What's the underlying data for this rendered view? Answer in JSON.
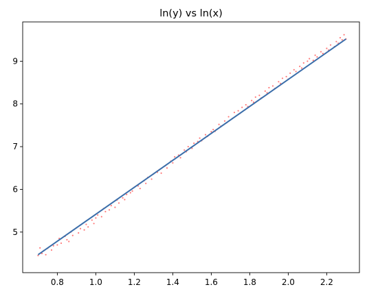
{
  "chart_data": {
    "type": "scatter",
    "title": "ln(y) vs ln(x)",
    "xlabel": "",
    "ylabel": "",
    "xlim": [
      0.62,
      2.37
    ],
    "ylim": [
      4.05,
      9.92
    ],
    "xticks": [
      0.8,
      1.0,
      1.2,
      1.4,
      1.6,
      1.8,
      2.0,
      2.2
    ],
    "xtick_labels": [
      "0.8",
      "1.0",
      "1.2",
      "1.4",
      "1.6",
      "1.8",
      "2.0",
      "2.2"
    ],
    "yticks": [
      5,
      6,
      7,
      8,
      9
    ],
    "ytick_labels": [
      "5",
      "6",
      "7",
      "8",
      "9"
    ],
    "grid": false,
    "series": [
      {
        "kind": "scatter",
        "color": "#ff4d4d",
        "points": [
          [
            0.7,
            4.45
          ],
          [
            0.71,
            4.63
          ],
          [
            0.72,
            4.5
          ],
          [
            0.73,
            4.57
          ],
          [
            0.74,
            4.47
          ],
          [
            0.75,
            4.62
          ],
          [
            0.77,
            4.58
          ],
          [
            0.78,
            4.68
          ],
          [
            0.8,
            4.7
          ],
          [
            0.81,
            4.85
          ],
          [
            0.82,
            4.74
          ],
          [
            0.84,
            4.9
          ],
          [
            0.85,
            4.82
          ],
          [
            0.86,
            4.78
          ],
          [
            0.87,
            5.0
          ],
          [
            0.88,
            4.92
          ],
          [
            0.9,
            5.1
          ],
          [
            0.91,
            4.98
          ],
          [
            0.92,
            5.08
          ],
          [
            0.94,
            5.05
          ],
          [
            0.95,
            5.18
          ],
          [
            0.96,
            5.12
          ],
          [
            0.98,
            5.28
          ],
          [
            0.99,
            5.2
          ],
          [
            1.0,
            5.33
          ],
          [
            1.01,
            5.4
          ],
          [
            1.03,
            5.36
          ],
          [
            1.04,
            5.55
          ],
          [
            1.05,
            5.48
          ],
          [
            1.07,
            5.52
          ],
          [
            1.08,
            5.62
          ],
          [
            1.1,
            5.58
          ],
          [
            1.11,
            5.75
          ],
          [
            1.12,
            5.68
          ],
          [
            1.14,
            5.8
          ],
          [
            1.15,
            5.76
          ],
          [
            1.16,
            5.88
          ],
          [
            1.18,
            5.92
          ],
          [
            1.19,
            5.96
          ],
          [
            1.2,
            6.05
          ],
          [
            1.22,
            6.08
          ],
          [
            1.23,
            6.02
          ],
          [
            1.25,
            6.2
          ],
          [
            1.26,
            6.14
          ],
          [
            1.27,
            6.28
          ],
          [
            1.29,
            6.24
          ],
          [
            1.3,
            6.36
          ],
          [
            1.32,
            6.4
          ],
          [
            1.33,
            6.46
          ],
          [
            1.34,
            6.38
          ],
          [
            1.36,
            6.55
          ],
          [
            1.37,
            6.5
          ],
          [
            1.39,
            6.66
          ],
          [
            1.4,
            6.62
          ],
          [
            1.41,
            6.76
          ],
          [
            1.43,
            6.8
          ],
          [
            1.44,
            6.74
          ],
          [
            1.46,
            6.92
          ],
          [
            1.47,
            6.88
          ],
          [
            1.48,
            7.0
          ],
          [
            1.5,
            6.96
          ],
          [
            1.51,
            7.08
          ],
          [
            1.53,
            7.12
          ],
          [
            1.54,
            7.2
          ],
          [
            1.55,
            7.14
          ],
          [
            1.57,
            7.28
          ],
          [
            1.58,
            7.24
          ],
          [
            1.6,
            7.35
          ],
          [
            1.61,
            7.4
          ],
          [
            1.62,
            7.36
          ],
          [
            1.64,
            7.52
          ],
          [
            1.65,
            7.48
          ],
          [
            1.67,
            7.6
          ],
          [
            1.68,
            7.56
          ],
          [
            1.69,
            7.7
          ],
          [
            1.71,
            7.66
          ],
          [
            1.72,
            7.8
          ],
          [
            1.74,
            7.84
          ],
          [
            1.75,
            7.78
          ],
          [
            1.76,
            7.92
          ],
          [
            1.78,
            7.98
          ],
          [
            1.79,
            7.94
          ],
          [
            1.81,
            8.08
          ],
          [
            1.82,
            8.04
          ],
          [
            1.83,
            8.16
          ],
          [
            1.85,
            8.2
          ],
          [
            1.86,
            8.14
          ],
          [
            1.88,
            8.3
          ],
          [
            1.89,
            8.26
          ],
          [
            1.9,
            8.38
          ],
          [
            1.92,
            8.42
          ],
          [
            1.93,
            8.36
          ],
          [
            1.95,
            8.52
          ],
          [
            1.96,
            8.48
          ],
          [
            1.97,
            8.6
          ],
          [
            1.99,
            8.64
          ],
          [
            2.0,
            8.58
          ],
          [
            2.01,
            8.72
          ],
          [
            2.03,
            8.8
          ],
          [
            2.04,
            8.76
          ],
          [
            2.06,
            8.88
          ],
          [
            2.07,
            8.84
          ],
          [
            2.08,
            8.96
          ],
          [
            2.1,
            9.0
          ],
          [
            2.11,
            9.06
          ],
          [
            2.13,
            9.02
          ],
          [
            2.14,
            9.14
          ],
          [
            2.15,
            9.1
          ],
          [
            2.17,
            9.22
          ],
          [
            2.18,
            9.18
          ],
          [
            2.2,
            9.3
          ],
          [
            2.21,
            9.26
          ],
          [
            2.22,
            9.38
          ],
          [
            2.24,
            9.34
          ],
          [
            2.25,
            9.46
          ],
          [
            2.26,
            9.42
          ],
          [
            2.27,
            9.55
          ],
          [
            2.28,
            9.5
          ],
          [
            2.29,
            9.62
          ],
          [
            2.3,
            9.52
          ]
        ]
      },
      {
        "kind": "line",
        "color": "#3b6eaa",
        "points": [
          [
            0.7,
            4.47
          ],
          [
            2.3,
            9.52
          ]
        ]
      }
    ]
  }
}
